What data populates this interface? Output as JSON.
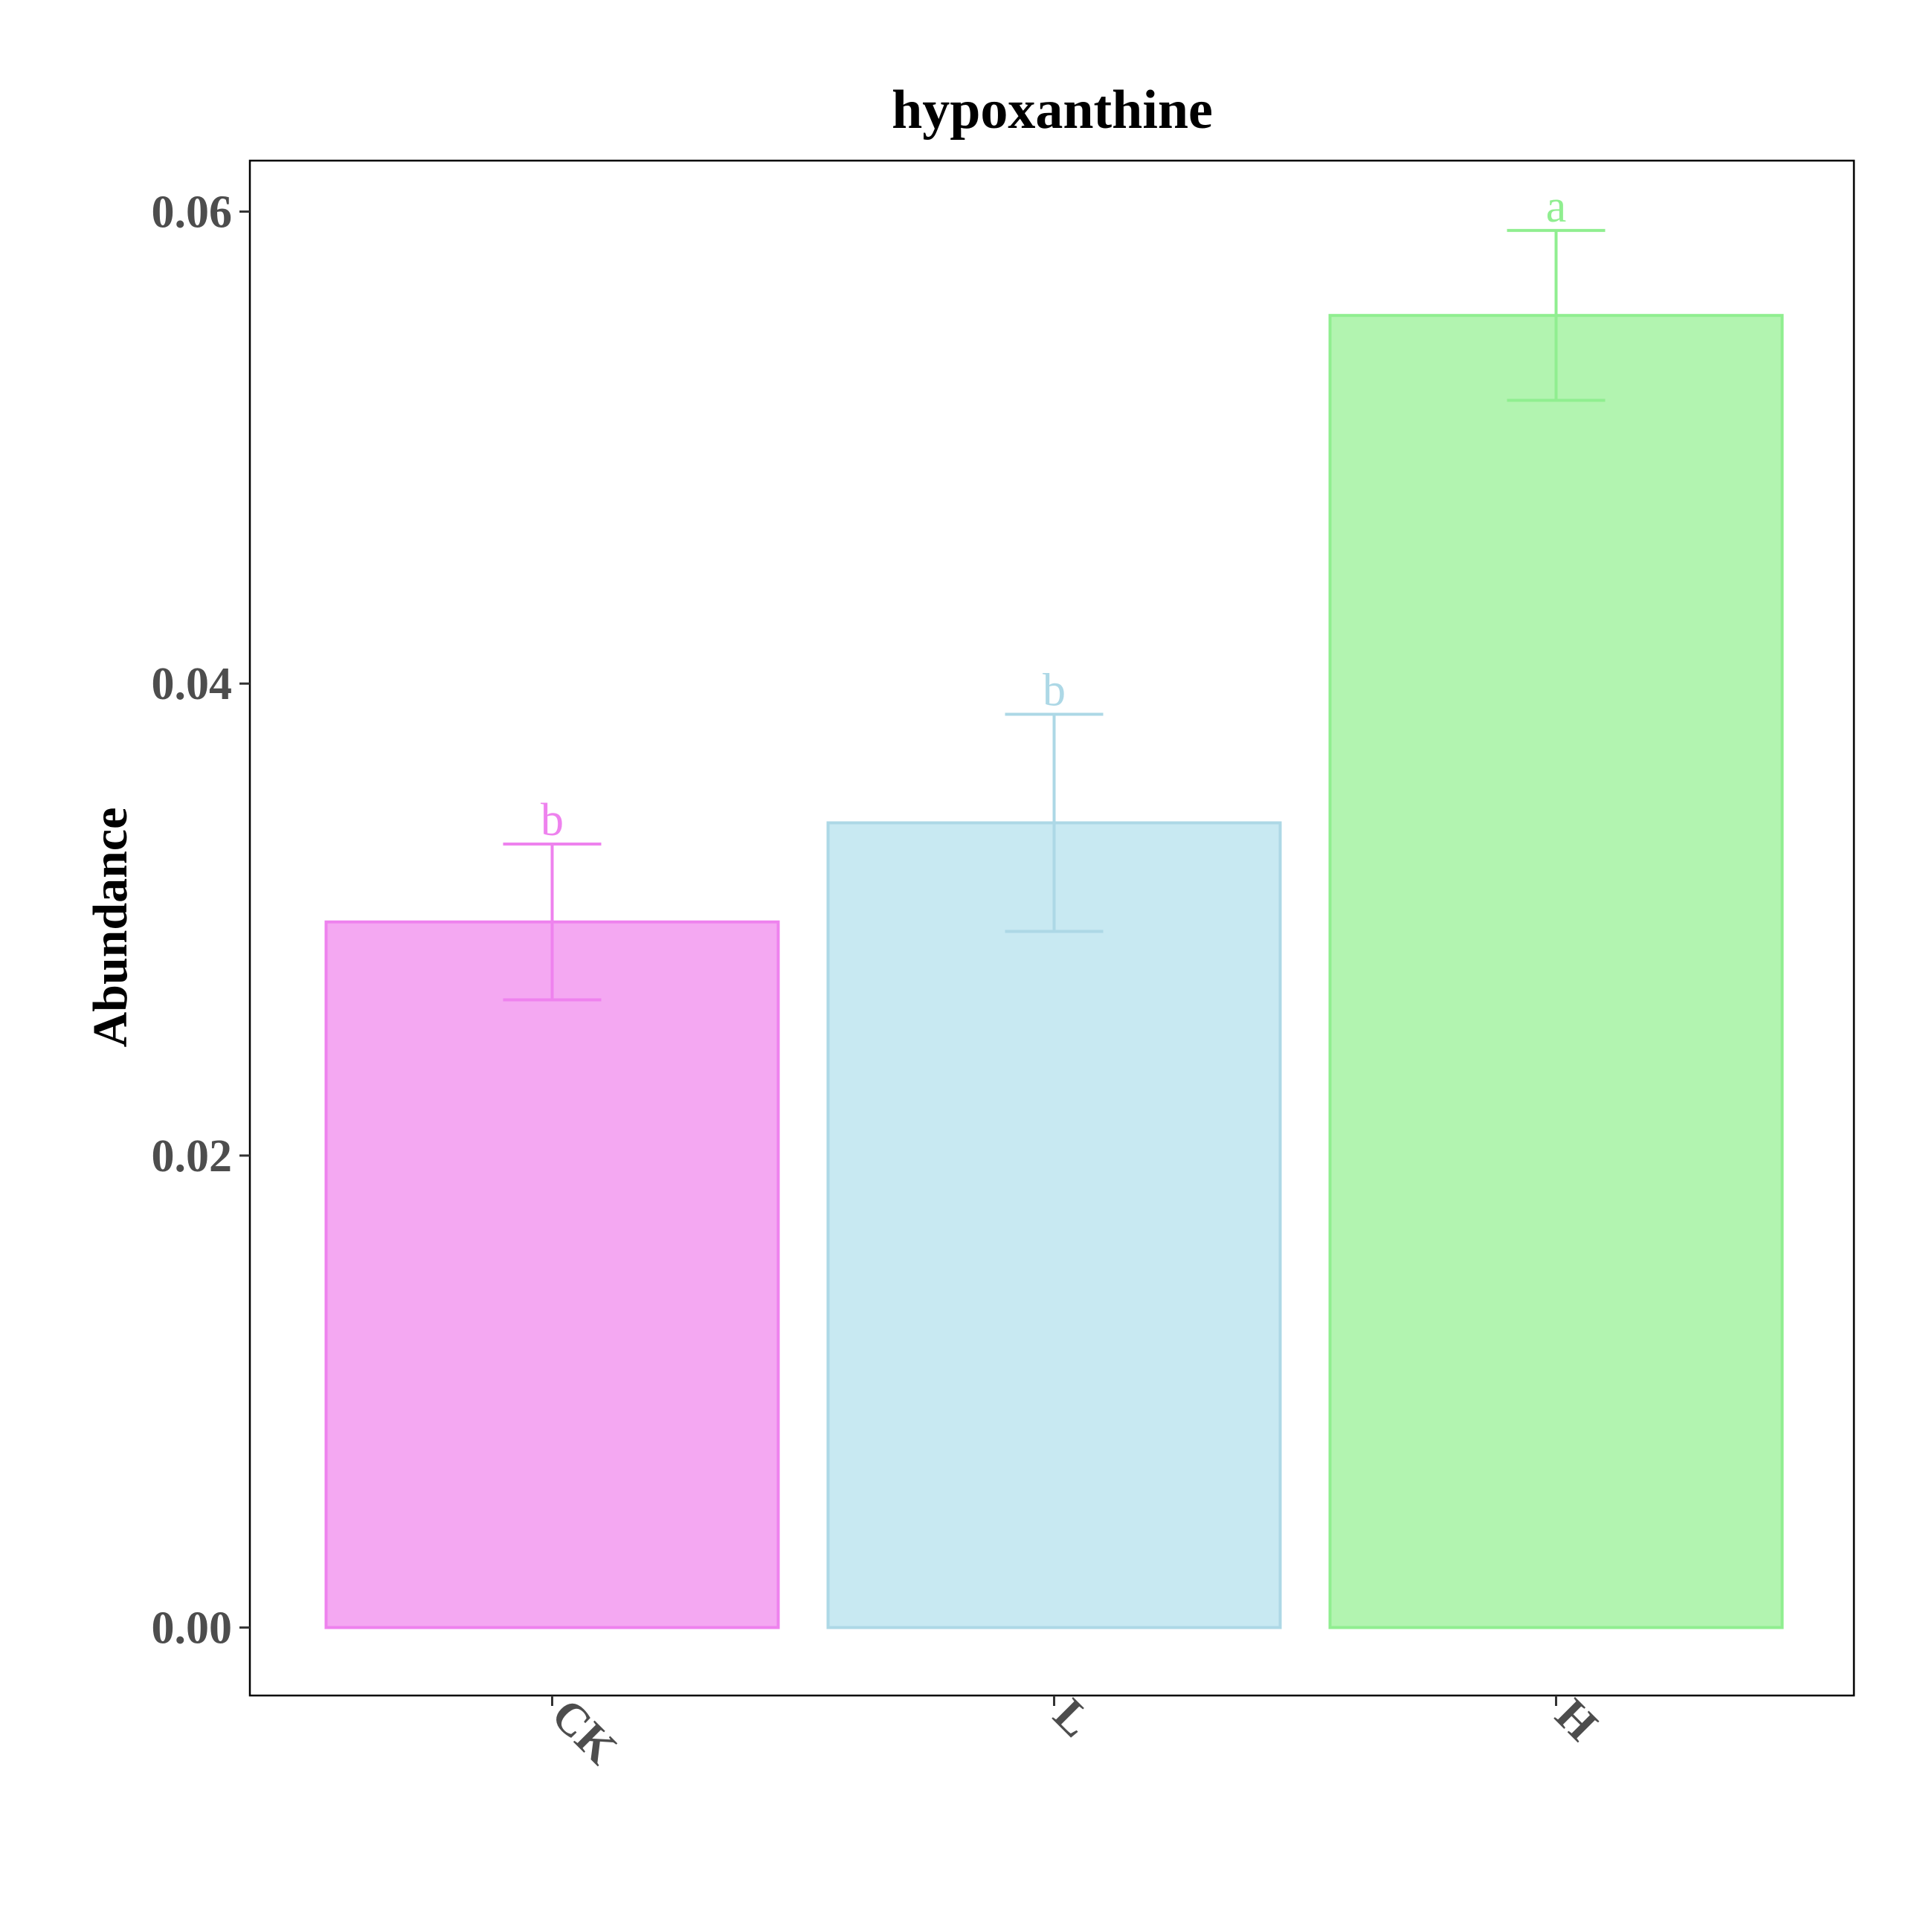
{
  "chart_data": {
    "type": "bar",
    "title": "hypoxanthine",
    "xlabel": "",
    "ylabel": "Abundance",
    "categories": [
      "CK",
      "L",
      "H"
    ],
    "values": [
      0.0299,
      0.0341,
      0.0556
    ],
    "errors": [
      0.0033,
      0.0046,
      0.0036
    ],
    "significance": [
      "b",
      "b",
      "a"
    ],
    "colors": [
      "#EE82EE",
      "#ADD8E6",
      "#90EE90"
    ],
    "fill_colors": [
      "#F4A8F2",
      "#C8E9F2",
      "#B2F4B0"
    ],
    "ylim": [
      -0.00288,
      0.06216
    ],
    "yticks": [
      0.0,
      0.02,
      0.04,
      0.06
    ],
    "ytick_labels": [
      "0.00",
      "0.02",
      "0.04",
      "0.06"
    ],
    "grid": false,
    "legend": "none"
  }
}
